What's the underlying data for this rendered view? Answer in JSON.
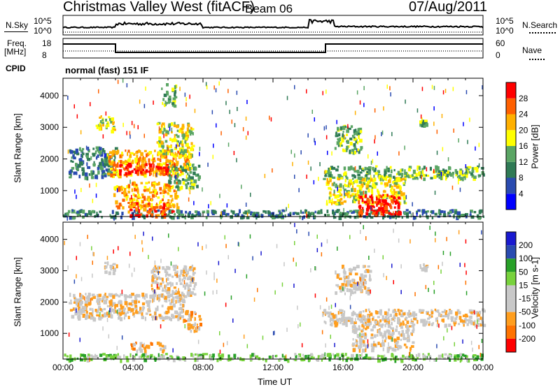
{
  "header": {
    "station": "Christmas Valley West (fitACF)",
    "beam": "Beam 06",
    "date": "07/Aug/2011"
  },
  "nsky_panel": {
    "left_label": "N.Sky",
    "right_label": "N.Search",
    "left_ticks": [
      "10^5",
      "10^0"
    ],
    "right_ticks": [
      "10^5",
      "10^0"
    ]
  },
  "freq_panel": {
    "left_label_line1": "Freq.",
    "left_label_line2": "[MHz]",
    "right_label": "Nave",
    "left_ticks": [
      "18",
      "8"
    ],
    "right_ticks": [
      "60",
      "0"
    ]
  },
  "cpid": {
    "label": "CPID",
    "value": "normal (fast) 151 IF"
  },
  "colors": {
    "power": [
      "#0000ff",
      "#2a4bb0",
      "#2f7a55",
      "#5aa564",
      "#ffff00",
      "#ffb000",
      "#ff6000",
      "#ff0000"
    ],
    "velocity": [
      "#ff0000",
      "#ff7300",
      "#ff9e1e",
      "#c8c8c8",
      "#c8c8c8",
      "#78d23c",
      "#28a028",
      "#2a4bb0",
      "#1a1ad0"
    ]
  },
  "chart_data": [
    {
      "type": "heatmap",
      "name": "power",
      "ylabel": "Slant Range [km]",
      "yticks": [
        1000,
        2000,
        3000,
        4000
      ],
      "ylim": [
        180,
        4550
      ],
      "xlim": [
        0,
        24
      ],
      "colorbar_label": "Power [dB]",
      "colorbar_ticks": [
        "4",
        "8",
        "12",
        "16",
        "20",
        "24",
        "28"
      ],
      "colorbar_range": [
        0,
        32
      ],
      "regions": [
        {
          "t0": 0.0,
          "t1": 24.0,
          "r0": 180,
          "r1": 420,
          "level": 2
        },
        {
          "t0": 0.3,
          "t1": 3.0,
          "r0": 1450,
          "r1": 2400,
          "level": 2
        },
        {
          "t0": 2.5,
          "t1": 7.2,
          "r0": 1500,
          "r1": 2300,
          "level": 5
        },
        {
          "t0": 3.0,
          "t1": 6.0,
          "r0": 1550,
          "r1": 1900,
          "level": 7
        },
        {
          "t0": 2.8,
          "t1": 6.5,
          "r0": 500,
          "r1": 1300,
          "level": 5
        },
        {
          "t0": 3.5,
          "t1": 6.2,
          "r0": 220,
          "r1": 650,
          "level": 6
        },
        {
          "t0": 5.3,
          "t1": 7.4,
          "r0": 2100,
          "r1": 3200,
          "level": 4
        },
        {
          "t0": 6.0,
          "t1": 7.8,
          "r0": 1100,
          "r1": 1900,
          "level": 3
        },
        {
          "t0": 1.8,
          "t1": 2.9,
          "r0": 2900,
          "r1": 3400,
          "level": 4
        },
        {
          "t0": 5.6,
          "t1": 6.4,
          "r0": 3700,
          "r1": 4400,
          "level": 3
        },
        {
          "t0": 14.8,
          "t1": 24.0,
          "r0": 1400,
          "r1": 1800,
          "level": 3
        },
        {
          "t0": 15.0,
          "t1": 19.5,
          "r0": 600,
          "r1": 1450,
          "level": 4
        },
        {
          "t0": 16.8,
          "t1": 19.2,
          "r0": 250,
          "r1": 900,
          "level": 7
        },
        {
          "t0": 15.5,
          "t1": 17.0,
          "r0": 2200,
          "r1": 3100,
          "level": 3
        },
        {
          "t0": 20.3,
          "t1": 20.8,
          "r0": 3050,
          "r1": 3250,
          "level": 3
        }
      ]
    },
    {
      "type": "heatmap",
      "name": "velocity",
      "ylabel": "Slant Range [km]",
      "xlabel": "Time UT",
      "xticks": [
        "00:00",
        "04:00",
        "08:00",
        "12:00",
        "16:00",
        "20:00",
        "00:00"
      ],
      "yticks": [
        1000,
        2000,
        3000,
        4000
      ],
      "ylim": [
        180,
        4550
      ],
      "xlim": [
        0,
        24
      ],
      "colorbar_label": "Velocity [m s-1]",
      "colorbar_ticks": [
        "200",
        "100",
        "50",
        "15",
        "-15",
        "-50",
        "-100",
        "-200"
      ],
      "regions": [
        {
          "t0": 0.0,
          "t1": 24.0,
          "r0": 180,
          "r1": 380,
          "level": 5
        },
        {
          "t0": 0.3,
          "t1": 7.0,
          "r0": 1500,
          "r1": 2300,
          "level": 3
        },
        {
          "t0": 5.0,
          "t1": 7.5,
          "r0": 2200,
          "r1": 3200,
          "level": 3
        },
        {
          "t0": 6.8,
          "t1": 7.8,
          "r0": 1100,
          "r1": 1800,
          "level": 2
        },
        {
          "t0": 3.8,
          "t1": 5.8,
          "r0": 480,
          "r1": 750,
          "level": 2
        },
        {
          "t0": 2.3,
          "t1": 3.1,
          "r0": 2950,
          "r1": 3300,
          "level": 3
        },
        {
          "t0": 14.8,
          "t1": 24.0,
          "r0": 1300,
          "r1": 1800,
          "level": 3
        },
        {
          "t0": 16.5,
          "t1": 20.0,
          "r0": 500,
          "r1": 1300,
          "level": 3
        },
        {
          "t0": 15.5,
          "t1": 17.5,
          "r0": 2300,
          "r1": 3200,
          "level": 3
        },
        {
          "t0": 20.3,
          "t1": 20.8,
          "r0": 3050,
          "r1": 3250,
          "level": 3
        }
      ]
    }
  ]
}
